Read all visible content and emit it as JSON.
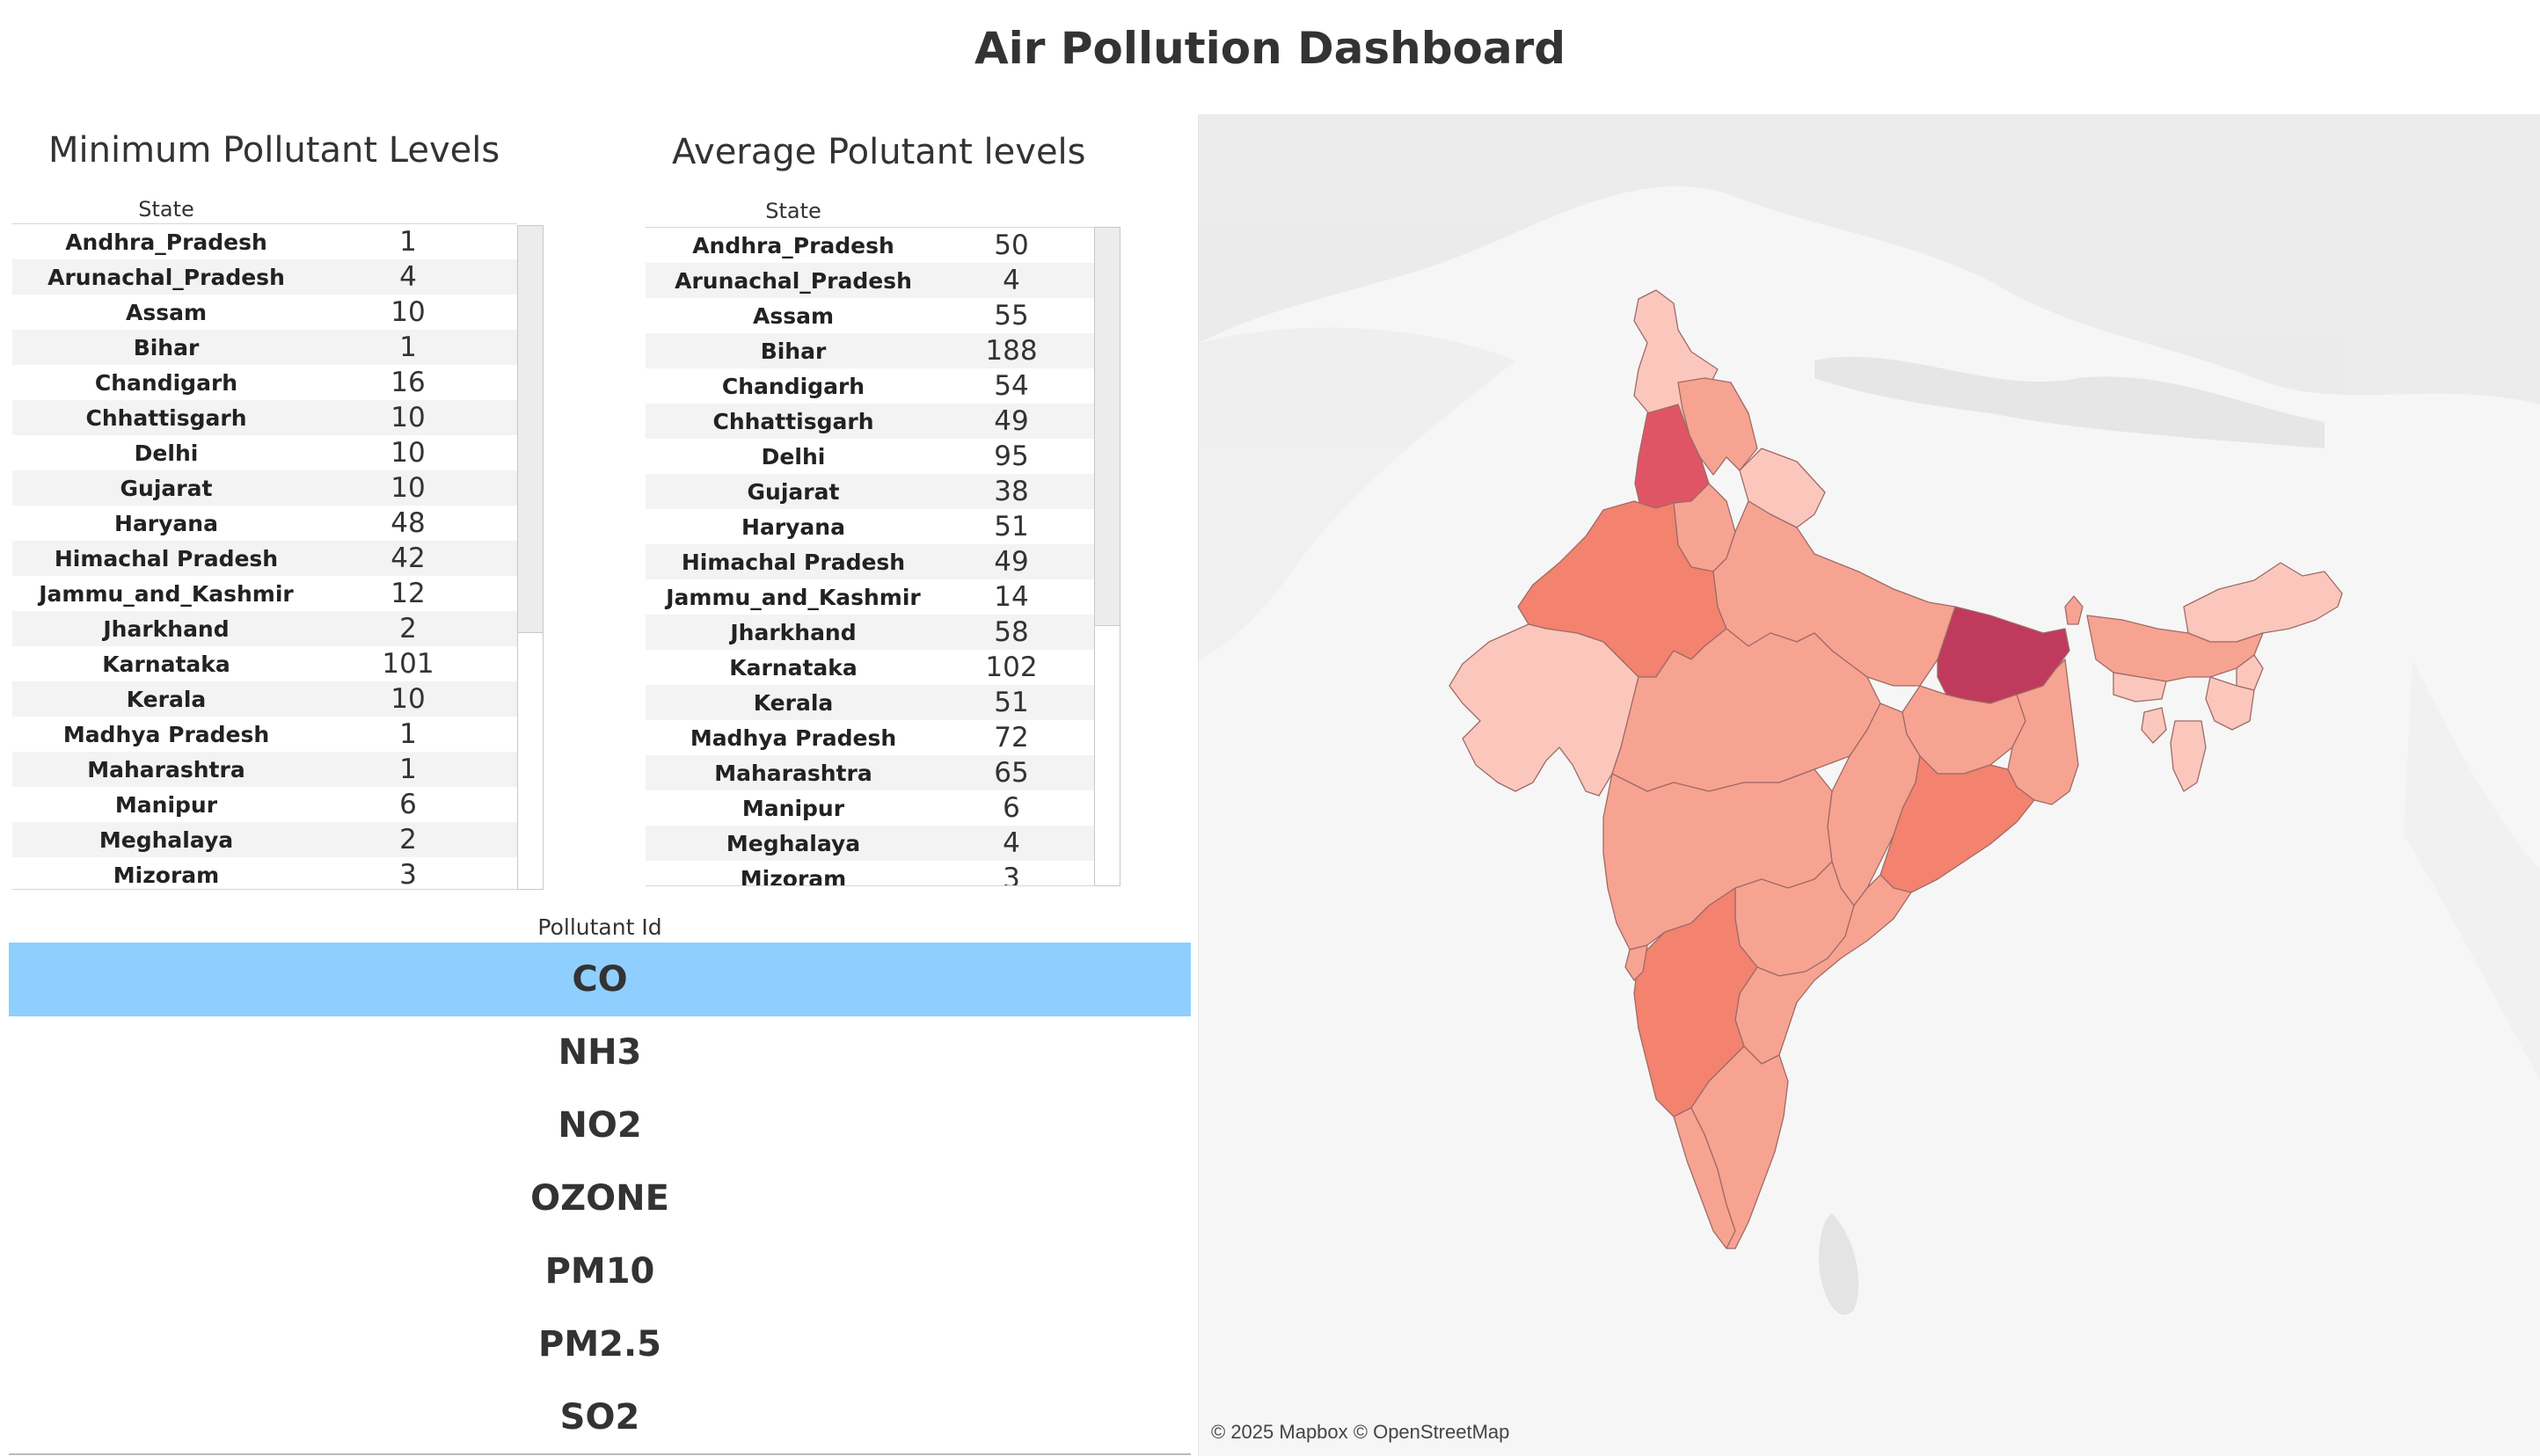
{
  "title": "Air Pollution Dashboard",
  "min_table": {
    "title": "Minimum Pollutant Levels",
    "col_header": "State",
    "rows": [
      {
        "state": "Andhra_Pradesh",
        "value": "1"
      },
      {
        "state": "Arunachal_Pradesh",
        "value": "4"
      },
      {
        "state": "Assam",
        "value": "10"
      },
      {
        "state": "Bihar",
        "value": "1"
      },
      {
        "state": "Chandigarh",
        "value": "16"
      },
      {
        "state": "Chhattisgarh",
        "value": "10"
      },
      {
        "state": "Delhi",
        "value": "10"
      },
      {
        "state": "Gujarat",
        "value": "10"
      },
      {
        "state": "Haryana",
        "value": "48"
      },
      {
        "state": "Himachal Pradesh",
        "value": "42"
      },
      {
        "state": "Jammu_and_Kashmir",
        "value": "12"
      },
      {
        "state": "Jharkhand",
        "value": "2"
      },
      {
        "state": "Karnataka",
        "value": "101"
      },
      {
        "state": "Kerala",
        "value": "10"
      },
      {
        "state": "Madhya Pradesh",
        "value": "1"
      },
      {
        "state": "Maharashtra",
        "value": "1"
      },
      {
        "state": "Manipur",
        "value": "6"
      },
      {
        "state": "Meghalaya",
        "value": "2"
      },
      {
        "state": "Mizoram",
        "value": "3"
      }
    ]
  },
  "avg_table": {
    "title": "Average Polutant levels",
    "col_header": "State",
    "rows": [
      {
        "state": "Andhra_Pradesh",
        "value": "50"
      },
      {
        "state": "Arunachal_Pradesh",
        "value": "4"
      },
      {
        "state": "Assam",
        "value": "55"
      },
      {
        "state": "Bihar",
        "value": "188"
      },
      {
        "state": "Chandigarh",
        "value": "54"
      },
      {
        "state": "Chhattisgarh",
        "value": "49"
      },
      {
        "state": "Delhi",
        "value": "95"
      },
      {
        "state": "Gujarat",
        "value": "38"
      },
      {
        "state": "Haryana",
        "value": "51"
      },
      {
        "state": "Himachal Pradesh",
        "value": "49"
      },
      {
        "state": "Jammu_and_Kashmir",
        "value": "14"
      },
      {
        "state": "Jharkhand",
        "value": "58"
      },
      {
        "state": "Karnataka",
        "value": "102"
      },
      {
        "state": "Kerala",
        "value": "51"
      },
      {
        "state": "Madhya Pradesh",
        "value": "72"
      },
      {
        "state": "Maharashtra",
        "value": "65"
      },
      {
        "state": "Manipur",
        "value": "6"
      },
      {
        "state": "Meghalaya",
        "value": "4"
      },
      {
        "state": "Mizoram",
        "value": "3"
      }
    ]
  },
  "pollutant_filter": {
    "header": "Pollutant Id",
    "options": [
      "CO",
      "NH3",
      "NO2",
      "OZONE",
      "PM10",
      "PM2.5",
      "SO2"
    ],
    "selected": "CO",
    "selected_color": "#8fcfff"
  },
  "map": {
    "credit": "© 2025 Mapbox © OpenStreetMap",
    "palette": [
      "#fbc7bd",
      "#f7a392",
      "#f3826f",
      "#e05565",
      "#c03a5d"
    ]
  }
}
